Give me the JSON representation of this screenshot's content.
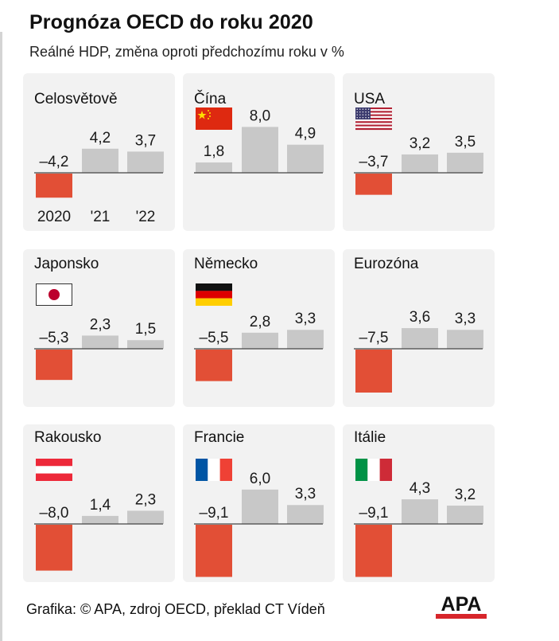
{
  "title": "Prognóza OECD do roku 2020",
  "subtitle": "Reálné HDP, změna oproti předchozímu roku v %",
  "footer": "Grafika: © APA, zdroj OECD, překlad CT Vídeň",
  "logo": "APA",
  "colors": {
    "negative": "#e24f36",
    "positive": "#c8c8c8",
    "panel": "#f2f2f2",
    "axis": "#444444"
  },
  "chart_data": {
    "type": "bar",
    "title": "Prognóza OECD do roku 2020",
    "subtitle": "Reálné HDP, změna oproti předchozímu roku v %",
    "categories": [
      "2020",
      "'21",
      "'22"
    ],
    "ylabel": "%",
    "panels": [
      {
        "name": "Celosvětově",
        "flag": "",
        "values": [
          -4.2,
          4.2,
          3.7
        ],
        "labels": [
          "–4,2",
          "4,2",
          "3,7"
        ]
      },
      {
        "name": "Čína",
        "flag": "china",
        "values": [
          1.8,
          8.0,
          4.9
        ],
        "labels": [
          "1,8",
          "8,0",
          "4,9"
        ]
      },
      {
        "name": "USA",
        "flag": "usa",
        "values": [
          -3.7,
          3.2,
          3.5
        ],
        "labels": [
          "–3,7",
          "3,2",
          "3,5"
        ]
      },
      {
        "name": "Japonsko",
        "flag": "japan",
        "values": [
          -5.3,
          2.3,
          1.5
        ],
        "labels": [
          "–5,3",
          "2,3",
          "1,5"
        ]
      },
      {
        "name": "Německo",
        "flag": "germany",
        "values": [
          -5.5,
          2.8,
          3.3
        ],
        "labels": [
          "–5,5",
          "2,8",
          "3,3"
        ]
      },
      {
        "name": "Eurozóna",
        "flag": "",
        "values": [
          -7.5,
          3.6,
          3.3
        ],
        "labels": [
          "–7,5",
          "3,6",
          "3,3"
        ]
      },
      {
        "name": "Rakousko",
        "flag": "austria",
        "values": [
          -8.0,
          1.4,
          2.3
        ],
        "labels": [
          "–8,0",
          "1,4",
          "2,3"
        ]
      },
      {
        "name": "Francie",
        "flag": "france",
        "values": [
          -9.1,
          6.0,
          3.3
        ],
        "labels": [
          "–9,1",
          "6,0",
          "3,3"
        ]
      },
      {
        "name": "Itálie",
        "flag": "italy",
        "values": [
          -9.1,
          4.3,
          3.2
        ],
        "labels": [
          "–9,1",
          "4,3",
          "3,2"
        ]
      }
    ]
  }
}
